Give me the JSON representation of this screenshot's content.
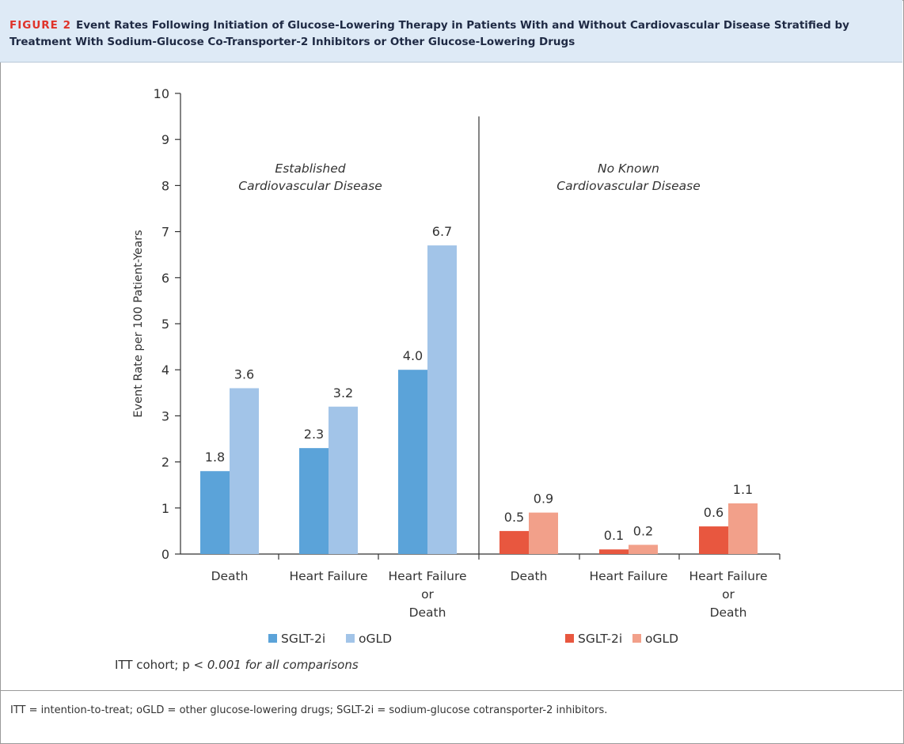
{
  "figure": {
    "label": "FIGURE 2",
    "title": "Event Rates Following Initiation of Glucose-Lowering Therapy in Patients With and Without Cardiovascular Disease Stratified by Treatment With Sodium-Glucose Co-Transporter-2 Inhibitors or Other Glucose-Lowering Drugs",
    "note_prefix": "ITT cohort; p ",
    "note_italic": "< 0.001 for all comparisons",
    "footnote": "ITT = intention-to-treat; oGLD = other glucose-lowering drugs; SGLT-2i = sodium-glucose cotransporter-2 inhibitors."
  },
  "colors": {
    "cvd_sglt": "#5ba3d9",
    "cvd_ogld": "#a2c4e8",
    "nocvd_sglt": "#e8573f",
    "nocvd_ogld": "#f2a08a",
    "axis": "#333333"
  },
  "chart_data": {
    "type": "bar",
    "ylabel": "Event Rate per 100 Patient-Years",
    "ylim": [
      0,
      10
    ],
    "yticks": [
      "0",
      "1",
      "2",
      "3",
      "4",
      "5",
      "6",
      "7",
      "8",
      "9",
      "10"
    ],
    "panels": [
      {
        "title_lines": [
          "Established",
          "Cardiovascular Disease"
        ],
        "categories": [
          [
            "Death"
          ],
          [
            "Heart Failure"
          ],
          [
            "Heart Failure",
            "or",
            "Death"
          ]
        ],
        "series": [
          {
            "name": "SGLT-2i",
            "values": [
              1.8,
              2.3,
              4.0
            ],
            "labels": [
              "1.8",
              "2.3",
              "4.0"
            ]
          },
          {
            "name": "oGLD",
            "values": [
              3.6,
              3.2,
              6.7
            ],
            "labels": [
              "3.6",
              "3.2",
              "6.7"
            ]
          }
        ]
      },
      {
        "title_lines": [
          "No Known",
          "Cardiovascular Disease"
        ],
        "categories": [
          [
            "Death"
          ],
          [
            "Heart Failure"
          ],
          [
            "Heart Failure",
            "or",
            "Death"
          ]
        ],
        "series": [
          {
            "name": "SGLT-2i",
            "values": [
              0.5,
              0.1,
              0.6
            ],
            "labels": [
              "0.5",
              "0.1",
              "0.6"
            ]
          },
          {
            "name": "oGLD",
            "values": [
              0.9,
              0.2,
              1.1
            ],
            "labels": [
              "0.9",
              "0.2",
              "1.1"
            ]
          }
        ]
      }
    ]
  }
}
